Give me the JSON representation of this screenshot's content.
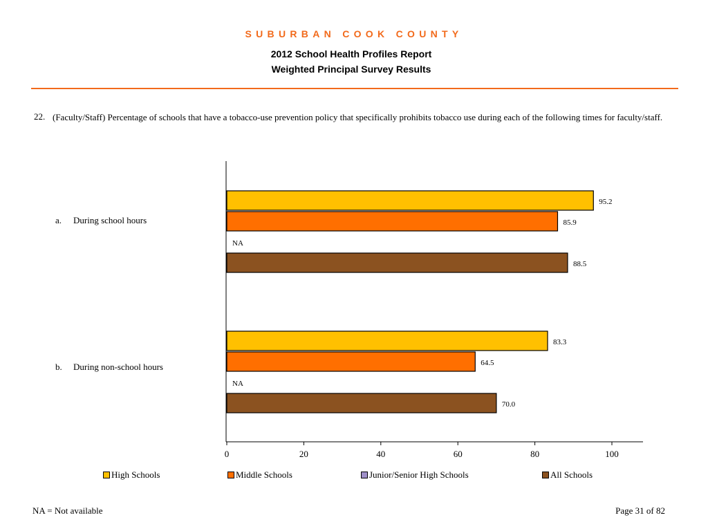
{
  "header": {
    "county": "SUBURBAN COOK COUNTY",
    "title": "2012 School Health Profiles Report",
    "subtitle": "Weighted Principal Survey Results",
    "accent_color": "#f26a1b"
  },
  "question": {
    "number": "22.",
    "text": "(Faculty/Staff) Percentage of schools that have a tobacco-use prevention policy that specifically prohibits tobacco use during each of the following times for faculty/staff."
  },
  "chart_data": {
    "type": "bar",
    "orientation": "horizontal",
    "xlim": [
      0,
      100
    ],
    "xticks": [
      0,
      20,
      40,
      60,
      80,
      100
    ],
    "grid": false,
    "legend_position": "bottom",
    "categories": [
      {
        "letter": "a.",
        "label": "During school hours"
      },
      {
        "letter": "b.",
        "label": "During non-school hours"
      }
    ],
    "series": [
      {
        "name": "High Schools",
        "color": "#ffc000",
        "values": [
          95.2,
          83.3
        ],
        "labels": [
          "95.2",
          "83.3"
        ]
      },
      {
        "name": "Middle Schools",
        "color": "#ff6f00",
        "values": [
          85.9,
          64.5
        ],
        "labels": [
          "85.9",
          "64.5"
        ]
      },
      {
        "name": "Junior/Senior High Schools",
        "color": "#9f8fc8",
        "values": [
          null,
          null
        ],
        "labels": [
          "NA",
          "NA"
        ]
      },
      {
        "name": "All Schools",
        "color": "#8b5220",
        "values": [
          88.5,
          70.0
        ],
        "labels": [
          "88.5",
          "70.0"
        ]
      }
    ]
  },
  "footer": {
    "note": "NA = Not available",
    "page": "Page 31 of 82"
  }
}
